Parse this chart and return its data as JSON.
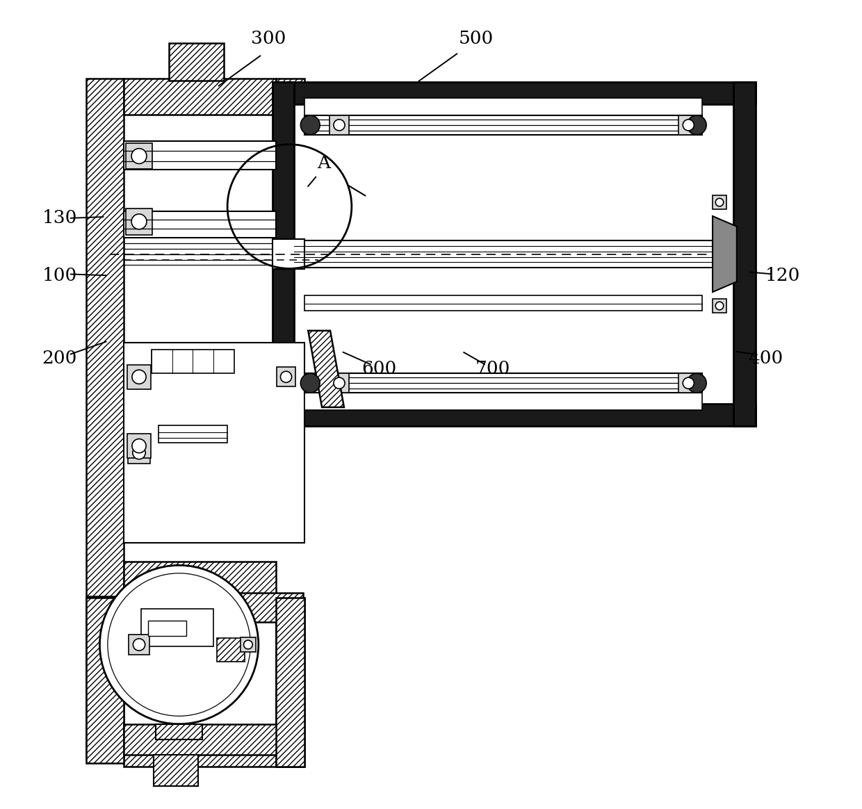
{
  "bg_color": "#ffffff",
  "lc": "#000000",
  "dark_fill": "#1a1a1a",
  "label_fs": 19,
  "fig_w": 12.4,
  "fig_h": 11.64,
  "dpi": 100
}
